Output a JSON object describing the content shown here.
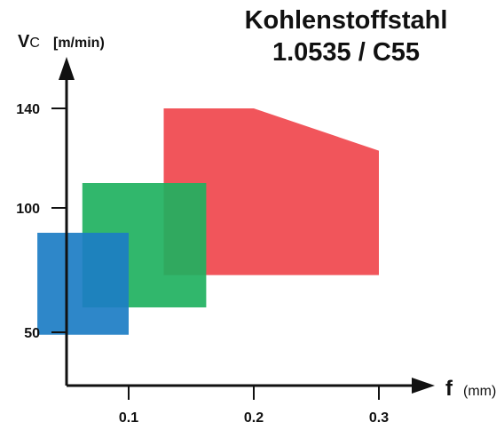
{
  "chart_data": {
    "type": "area",
    "title_lines": [
      "Kohlenstoffstahl",
      "1.0535 / C55"
    ],
    "y_axis": {
      "symbol": "V",
      "subscript": "C",
      "unit": "[m/min)",
      "ticks": [
        50,
        100,
        140
      ],
      "range": [
        35,
        165
      ]
    },
    "x_axis": {
      "symbol": "f",
      "unit": "(mm)",
      "ticks": [
        0.1,
        0.2,
        0.3
      ],
      "tick_labels": [
        "0.1",
        "0.2",
        "0.3"
      ],
      "range": [
        0.05,
        0.33
      ]
    },
    "grid": false,
    "legend": "none",
    "regions": [
      {
        "id": "red",
        "color": "#f0474d",
        "points": [
          [
            0.128,
            73
          ],
          [
            0.128,
            140
          ],
          [
            0.2,
            140
          ],
          [
            0.3,
            123
          ],
          [
            0.3,
            73
          ]
        ]
      },
      {
        "id": "green",
        "color": "#1fb15f",
        "points": [
          [
            0.063,
            60
          ],
          [
            0.063,
            110
          ],
          [
            0.162,
            110
          ],
          [
            0.162,
            60
          ]
        ]
      },
      {
        "id": "blue",
        "color": "#1c7dc4",
        "points": [
          [
            0.027,
            49
          ],
          [
            0.027,
            90
          ],
          [
            0.1,
            90
          ],
          [
            0.1,
            49
          ]
        ]
      }
    ]
  }
}
